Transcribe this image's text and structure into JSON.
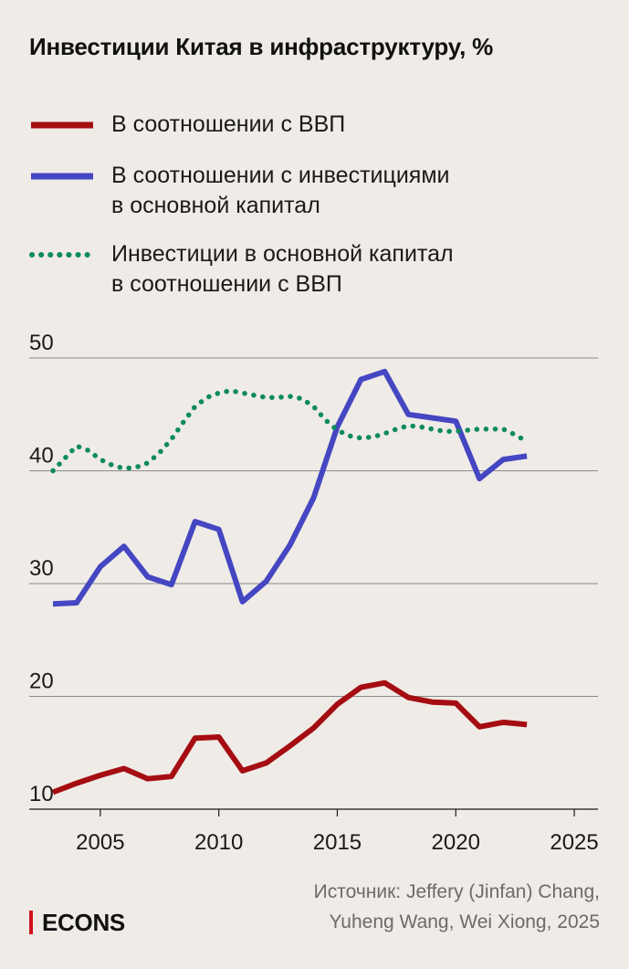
{
  "header": {
    "title": "Инвестиции Китая в инфраструктуру, %"
  },
  "legend": {
    "items": [
      {
        "label_line1": "В соотношении с ВВП",
        "label_line2": "",
        "color": "#a50d12",
        "style": "solid"
      },
      {
        "label_line1": "В соотношении с инвестициями",
        "label_line2": "в основной капитал",
        "color": "#4446c2",
        "style": "solid"
      },
      {
        "label_line1": "Инвестиции в основной капитал",
        "label_line2": "в соотношении с ВВП",
        "color": "#0e8a60",
        "style": "dotted"
      }
    ]
  },
  "footer": {
    "source_line1": "Источник: Jeffery (Jinfan) Chang,",
    "source_line2": "Yuheng Wang, Wei Xiong, 2025",
    "brand": "ECONS",
    "brand_color": "#d0121b"
  },
  "chart_data": {
    "type": "line",
    "title": "Инвестиции Китая в инфраструктуру, %",
    "xlabel": "",
    "ylabel": "",
    "xlim": [
      2002,
      2026
    ],
    "ylim": [
      10,
      50
    ],
    "xticks": [
      2005,
      2010,
      2015,
      2020,
      2025
    ],
    "yticks": [
      10,
      20,
      30,
      40,
      50
    ],
    "grid": "horizontal",
    "legend_position": "top",
    "x": [
      2003,
      2004,
      2005,
      2006,
      2007,
      2008,
      2009,
      2010,
      2011,
      2012,
      2013,
      2014,
      2015,
      2016,
      2017,
      2018,
      2019,
      2020,
      2021,
      2022,
      2023
    ],
    "series": [
      {
        "name": "В соотношении с ВВП",
        "color": "#a50d12",
        "style": "solid",
        "values": [
          11.5,
          12.3,
          13.0,
          13.6,
          12.7,
          12.9,
          16.3,
          16.4,
          13.4,
          14.1,
          15.6,
          17.2,
          19.3,
          20.8,
          21.2,
          19.9,
          19.5,
          19.4,
          17.3,
          17.7,
          17.5
        ]
      },
      {
        "name": "В соотношении с инвестициями в основной капитал",
        "color": "#4446c2",
        "style": "solid",
        "values": [
          28.2,
          28.3,
          31.5,
          33.3,
          30.6,
          29.9,
          35.5,
          34.8,
          28.4,
          30.2,
          33.4,
          37.6,
          43.9,
          48.1,
          48.8,
          45.0,
          44.7,
          44.4,
          39.3,
          41.0,
          41.3
        ]
      },
      {
        "name": "Инвестиции в основной капитал в соотношении с ВВП",
        "color": "#0e8a60",
        "style": "dotted",
        "x": [
          2003,
          2003.5,
          2004,
          2004.5,
          2005,
          2005.5,
          2006,
          2006.5,
          2007,
          2007.5,
          2008,
          2008.5,
          2009,
          2009.5,
          2010,
          2010.5,
          2011,
          2011.5,
          2012,
          2012.5,
          2013,
          2013.5,
          2014,
          2014.5,
          2015,
          2015.5,
          2016,
          2016.5,
          2017,
          2017.5,
          2018,
          2018.5,
          2019,
          2019.5,
          2020,
          2020.5,
          2021,
          2021.5,
          2022,
          2022.5,
          2023
        ],
        "values": [
          40.0,
          41.1,
          42.2,
          41.8,
          41.0,
          40.5,
          40.2,
          40.3,
          40.7,
          41.6,
          42.8,
          44.3,
          45.7,
          46.5,
          46.9,
          47.1,
          46.9,
          46.7,
          46.5,
          46.5,
          46.6,
          46.4,
          45.7,
          44.5,
          43.6,
          43.1,
          42.9,
          43.0,
          43.3,
          43.7,
          44.0,
          43.9,
          43.7,
          43.5,
          43.5,
          43.6,
          43.7,
          43.7,
          43.7,
          43.2,
          42.6
        ]
      }
    ]
  }
}
